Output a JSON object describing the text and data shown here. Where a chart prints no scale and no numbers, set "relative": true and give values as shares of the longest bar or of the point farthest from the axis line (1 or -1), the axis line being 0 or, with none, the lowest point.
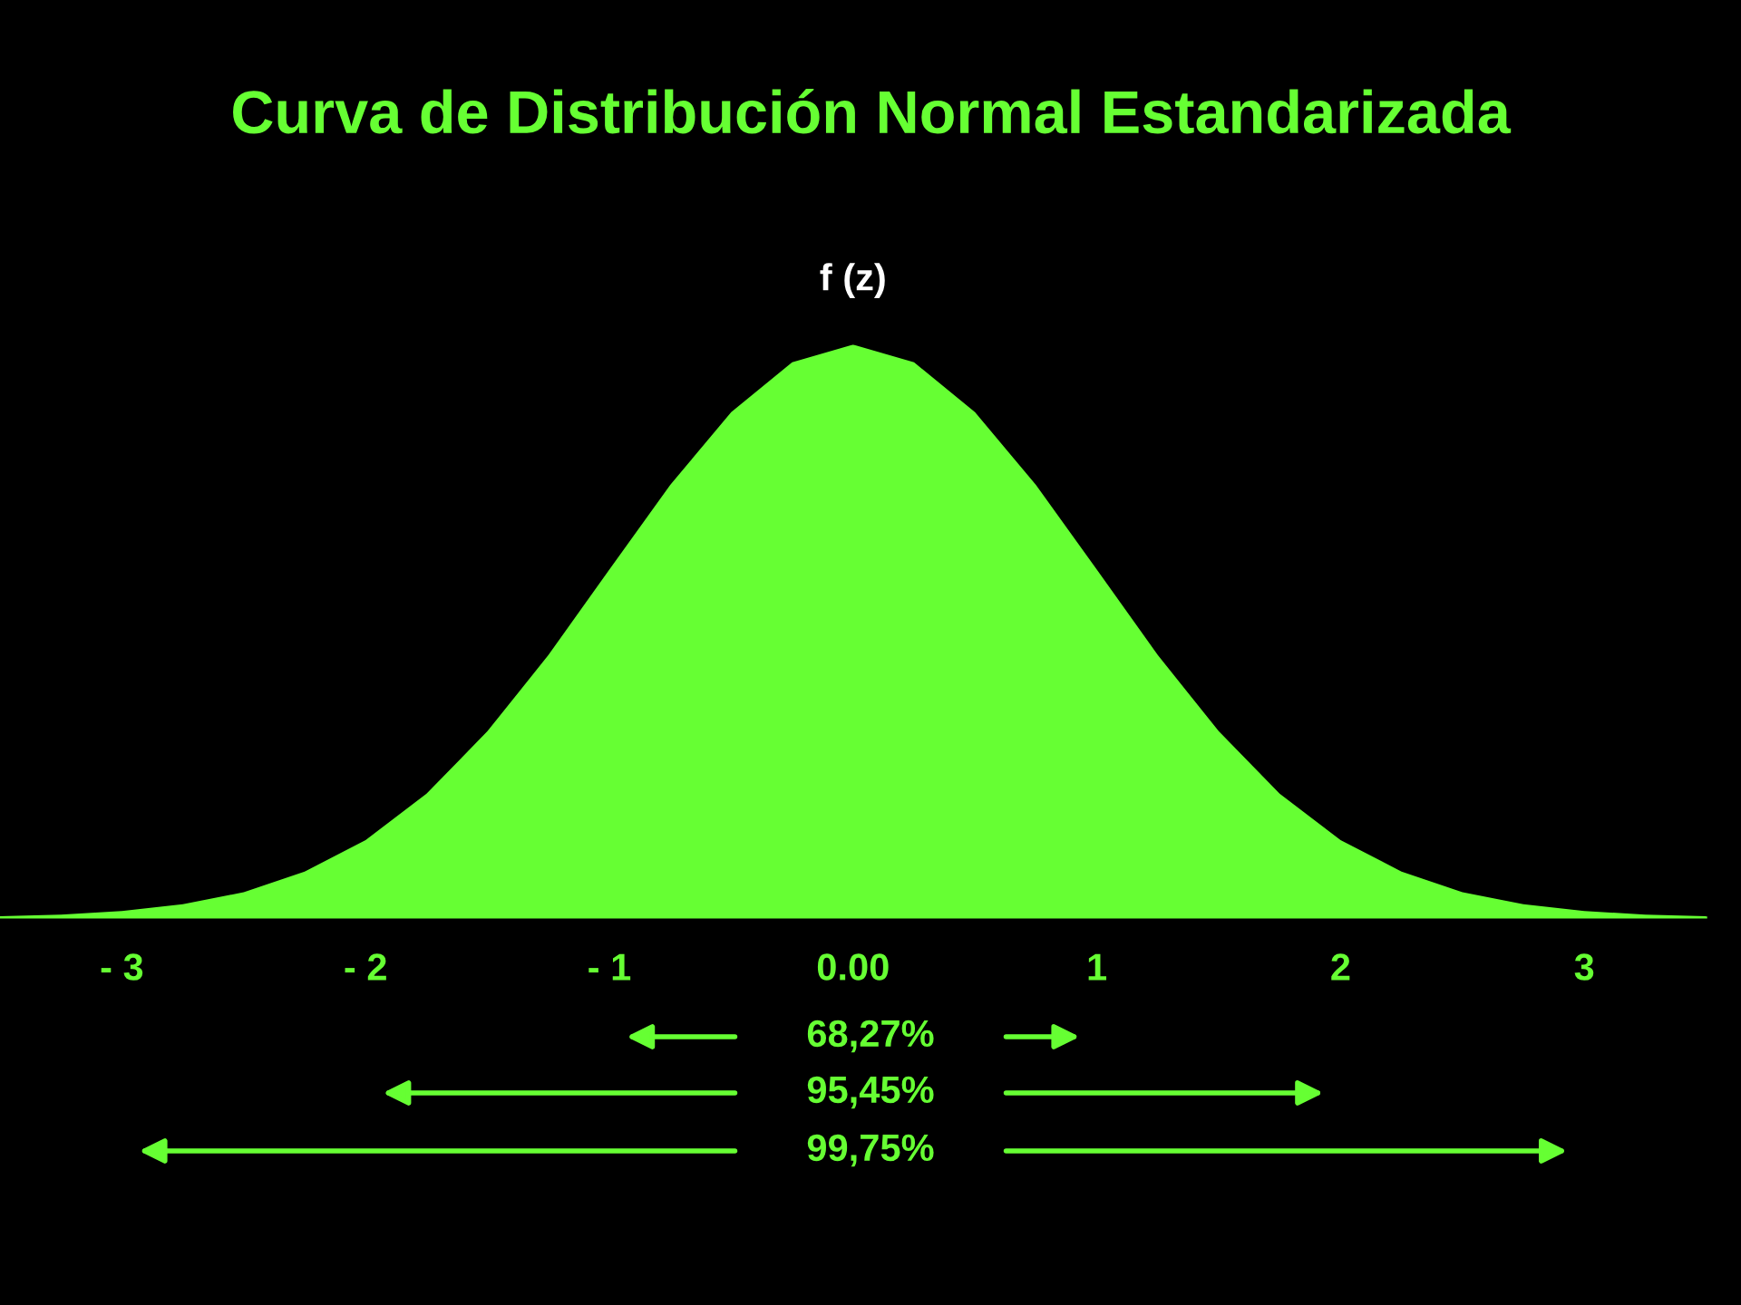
{
  "chart_data": {
    "type": "area",
    "title": "Curva de Distribución Normal Estandarizada",
    "ylabel": "f (z)",
    "relative": true,
    "x": [
      -3.5,
      -3.25,
      -3,
      -2.75,
      -2.5,
      -2.25,
      -2,
      -1.75,
      -1.5,
      -1.25,
      -1,
      -0.75,
      -0.5,
      -0.25,
      0,
      0.25,
      0.5,
      0.75,
      1,
      1.25,
      1.5,
      1.75,
      2,
      2.25,
      2.5,
      2.75,
      3,
      3.25,
      3.5
    ],
    "series": [
      {
        "color": "#66ff33",
        "values": [
          0.002,
          0.005,
          0.011,
          0.023,
          0.044,
          0.08,
          0.135,
          0.216,
          0.325,
          0.458,
          0.607,
          0.755,
          0.882,
          0.969,
          1,
          0.969,
          0.882,
          0.755,
          0.607,
          0.458,
          0.325,
          0.216,
          0.135,
          0.08,
          0.044,
          0.023,
          0.011,
          0.005,
          0.002
        ]
      }
    ],
    "xlim": [
      -3.5,
      3.5
    ],
    "xticks": [
      {
        "value": -3,
        "label": "- 3"
      },
      {
        "value": -2,
        "label": "- 2"
      },
      {
        "value": -1,
        "label": "- 1"
      },
      {
        "value": 0,
        "label": "0.00"
      },
      1,
      2,
      3
    ],
    "tick_labels": "x",
    "grid": false,
    "annotations": [
      "68,27%",
      "95,45%",
      "99,75%"
    ]
  }
}
